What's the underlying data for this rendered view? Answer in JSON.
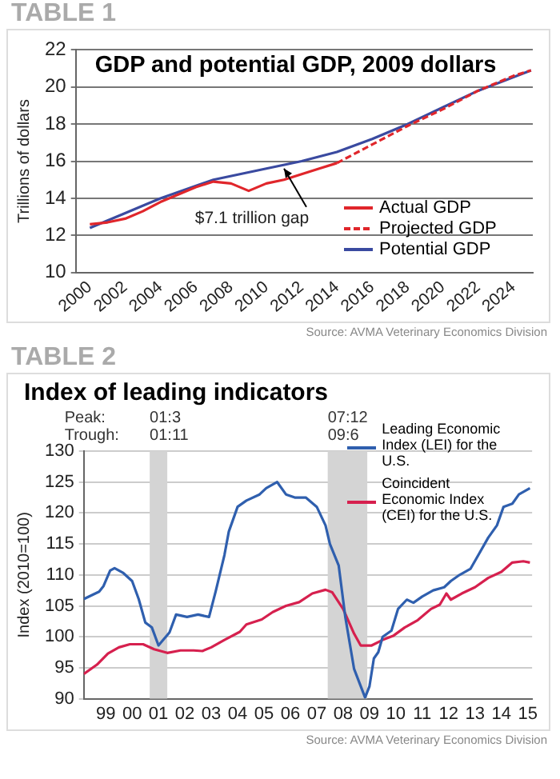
{
  "chart_data": [
    {
      "type": "line",
      "title": "GDP and potential GDP, 2009 dollars",
      "ylabel": "Trillions of dollars",
      "annotations": [
        "TABLE 1",
        {
          "text": "$7.1 trillion gap",
          "x": 2011,
          "y": 15.6
        },
        "Source: AVMA Veterinary Economics Division"
      ],
      "series": [
        {
          "name": "Actual GDP",
          "color": "#e0262b",
          "x": [
            2000,
            2001,
            2002,
            2003,
            2004,
            2005,
            2006,
            2007,
            2008,
            2009,
            2010,
            2011,
            2012,
            2013,
            2014
          ],
          "values": [
            12.6,
            12.7,
            12.9,
            13.3,
            13.8,
            14.2,
            14.6,
            14.9,
            14.8,
            14.4,
            14.8,
            15.0,
            15.3,
            15.6,
            15.9
          ]
        },
        {
          "name": "Projected GDP",
          "color": "#e0262b",
          "line_style": "dashed",
          "x": [
            2014,
            2016,
            2018,
            2020,
            2022,
            2024,
            2025
          ],
          "values": [
            15.9,
            16.9,
            17.9,
            18.8,
            19.8,
            20.6,
            20.9
          ]
        },
        {
          "name": "Potential GDP",
          "color": "#3a4aa0",
          "x": [
            2000,
            2002,
            2004,
            2007,
            2010,
            2012,
            2014,
            2016,
            2018,
            2020,
            2022,
            2025
          ],
          "values": [
            12.4,
            13.2,
            14.0,
            15.0,
            15.6,
            16.0,
            16.5,
            17.2,
            18.0,
            18.9,
            19.8,
            20.9
          ]
        }
      ],
      "xlim": [
        1999.2,
        2025.1
      ],
      "ylim": [
        10,
        22
      ],
      "xticks": [
        2000,
        2002,
        2004,
        2006,
        2008,
        2010,
        2012,
        2014,
        2016,
        2018,
        2020,
        2022,
        2024
      ],
      "yticks": [
        10,
        12,
        14,
        16,
        18,
        20,
        22
      ],
      "grid": "y",
      "legend": "bottom right"
    },
    {
      "type": "line",
      "title": "Index of leading indicators",
      "ylabel": "Index (2010=100)",
      "annotations": [
        "TABLE 2",
        "Peak:",
        "Trough:",
        "Source: AVMA Veterinary Economics Division"
      ],
      "series": [
        {
          "name": "Leading Economic Index (LEI) for the U.S.",
          "color": "#2f5fae",
          "x": [
            "1998-09",
            "1999-04",
            "1999-06",
            "1999-09",
            "1999-11",
            "2000-03",
            "2000-07",
            "2000-10",
            "2001-01",
            "2001-04",
            "2001-07",
            "2001-12",
            "2002-03",
            "2002-08",
            "2003-01",
            "2003-06",
            "2003-09",
            "2004-01",
            "2004-03",
            "2004-07",
            "2004-11",
            "2005-05",
            "2005-08",
            "2006-01",
            "2006-05",
            "2006-09",
            "2007-02",
            "2007-07",
            "2007-11",
            "2008-01",
            "2008-05",
            "2008-08",
            "2008-12",
            "2009-05",
            "2009-07",
            "2009-09",
            "2009-11",
            "2010-01",
            "2010-05",
            "2010-08",
            "2010-12",
            "2011-03",
            "2011-07",
            "2011-12",
            "2012-05",
            "2012-08",
            "2012-12",
            "2013-05",
            "2013-09",
            "2014-01",
            "2014-05",
            "2014-08",
            "2014-12",
            "2015-03",
            "2015-08"
          ],
          "values": [
            106.1,
            107.3,
            108.2,
            110.7,
            111.1,
            110.3,
            109,
            106.1,
            102.3,
            101.5,
            98.6,
            100.7,
            103.6,
            103.2,
            103.6,
            103.2,
            107.3,
            113.2,
            117,
            121,
            122,
            123,
            124,
            125,
            123,
            122.5,
            122.5,
            121,
            118,
            115,
            111.5,
            103.2,
            94.8,
            90.2,
            92,
            96.5,
            97.5,
            100,
            101,
            104.5,
            106,
            105.5,
            106.5,
            107.5,
            108,
            109,
            110,
            111,
            113.5,
            116,
            118,
            121,
            121.5,
            123,
            124
          ]
        },
        {
          "name": "Coincident Economic Index (CEI) for the U.S.",
          "color": "#d6204e",
          "x": [
            "1998-09",
            "1999-03",
            "1999-08",
            "2000-01",
            "2000-06",
            "2000-12",
            "2001-05",
            "2001-11",
            "2002-05",
            "2002-11",
            "2003-03",
            "2003-07",
            "2004-01",
            "2004-08",
            "2004-11",
            "2005-06",
            "2005-11",
            "2006-05",
            "2006-11",
            "2007-05",
            "2007-11",
            "2008-02",
            "2008-07",
            "2008-12",
            "2009-03",
            "2009-08",
            "2010-01",
            "2010-06",
            "2010-11",
            "2011-05",
            "2011-11",
            "2012-03",
            "2012-06",
            "2012-08",
            "2013-01",
            "2013-07",
            "2014-01",
            "2014-07",
            "2014-12",
            "2015-05",
            "2015-08"
          ],
          "values": [
            94,
            95.5,
            97.3,
            98.3,
            98.8,
            98.8,
            98,
            97.4,
            97.8,
            97.8,
            97.7,
            98.3,
            99.5,
            100.8,
            102,
            102.8,
            104,
            105,
            105.6,
            107,
            107.6,
            107.2,
            104.5,
            100.5,
            98.6,
            98.6,
            99.5,
            100.2,
            101.5,
            102.7,
            104.5,
            105.2,
            107,
            106,
            107,
            108,
            109.5,
            110.5,
            112,
            112.2,
            112
          ]
        }
      ],
      "bands": [
        {
          "axis": "x",
          "from": "2001-03",
          "to": "2001-11",
          "label": "01:3\n01:11",
          "color": "#d4d4d4"
        },
        {
          "axis": "x",
          "from": "2007-12",
          "to": "2009-06",
          "label": "07:12\n09:6",
          "color": "#d4d4d4"
        }
      ],
      "xlim": [
        "1998-09",
        "2015-09"
      ],
      "ylim": [
        90,
        130
      ],
      "xticks": [
        {
          "value": "1999-07",
          "label": "99"
        },
        {
          "value": "2000-07",
          "label": "00"
        },
        {
          "value": "2001-07",
          "label": "01"
        },
        {
          "value": "2002-07",
          "label": "02"
        },
        {
          "value": "2003-07",
          "label": "03"
        },
        {
          "value": "2004-07",
          "label": "04"
        },
        {
          "value": "2005-07",
          "label": "05"
        },
        {
          "value": "2006-07",
          "label": "06"
        },
        {
          "value": "2007-07",
          "label": "07"
        },
        {
          "value": "2008-07",
          "label": "08"
        },
        {
          "value": "2009-07",
          "label": "09"
        },
        {
          "value": "2010-07",
          "label": "10"
        },
        {
          "value": "2011-07",
          "label": "11"
        },
        {
          "value": "2012-07",
          "label": "12"
        },
        {
          "value": "2013-07",
          "label": "13"
        },
        {
          "value": "2014-07",
          "label": "14"
        },
        {
          "value": "2015-07",
          "label": "15"
        }
      ],
      "yticks": [
        90,
        95,
        100,
        105,
        110,
        115,
        120,
        125,
        130
      ],
      "grid": "y",
      "legend": "top right"
    }
  ]
}
